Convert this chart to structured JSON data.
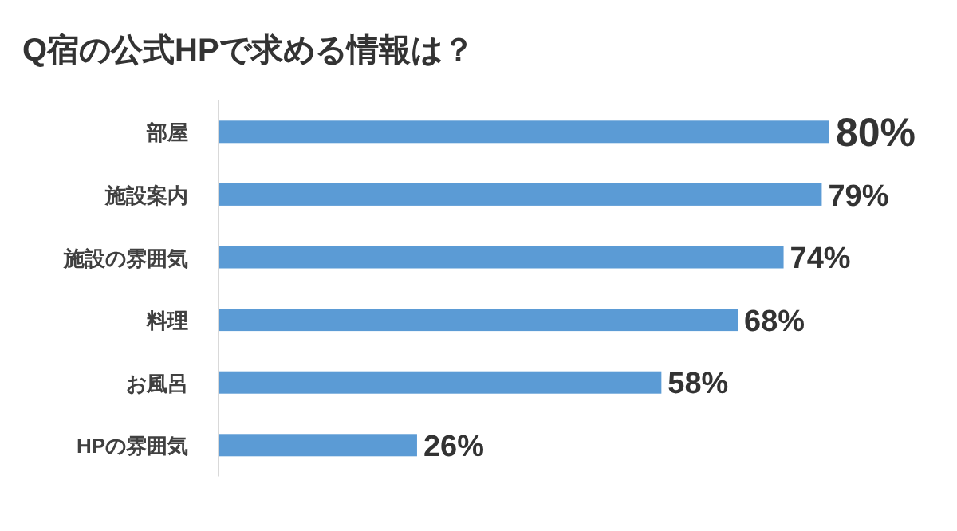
{
  "chart_data": {
    "type": "bar",
    "orientation": "horizontal",
    "title": "Q宿の公式HPで求める情報は？",
    "categories": [
      "部屋",
      "施設案内",
      "施設の雰囲気",
      "料理",
      "お風呂",
      "HPの雰囲気"
    ],
    "values": [
      80,
      79,
      74,
      68,
      58,
      26
    ],
    "color": "#5b9bd5",
    "value_labels": [
      "80%",
      "79%",
      "74%",
      "68%",
      "58%",
      "26%"
    ]
  }
}
